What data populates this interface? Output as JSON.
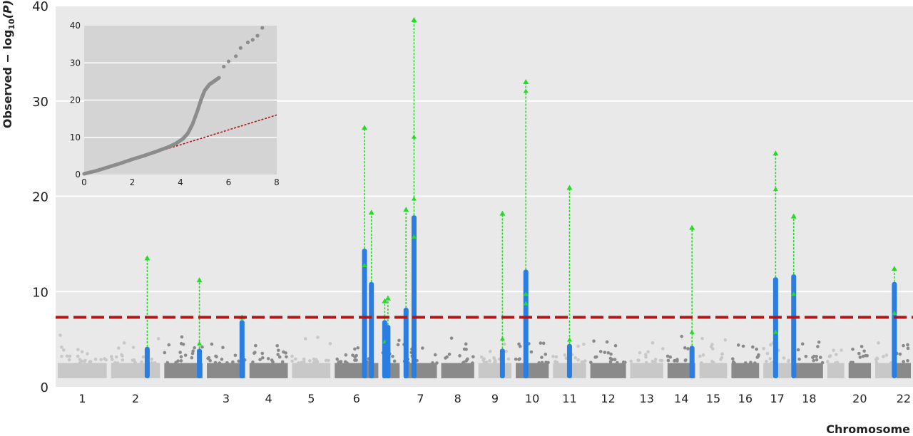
{
  "chart_data": [
    {
      "type": "scatter",
      "subtype": "manhattan",
      "xlabel": "Chromosome",
      "ylabel": "Observed − log10(P)",
      "ylabel_parts": {
        "prefix": "Observed − log",
        "sub": "10",
        "suffix": "(P)"
      },
      "ylim": [
        0,
        40
      ],
      "yticks": [
        0,
        10,
        20,
        30,
        40
      ],
      "grid": true,
      "threshold": 7.3,
      "threshold_color": "#b01818",
      "colors": {
        "background": "#e9e9e9",
        "grid": "#ffffff",
        "chrom_light": "#c8c8c8",
        "chrom_dark": "#8a8a8a",
        "hit": "#2a7de1",
        "arrow": "#22dd22"
      },
      "chromosomes": [
        {
          "label": "1",
          "shade": "light",
          "span": [
            0,
            1
          ]
        },
        {
          "label": "2",
          "shade": "light",
          "span": [
            1,
            2
          ]
        },
        {
          "label": "",
          "shade": "dark",
          "span": [
            2,
            2.8
          ]
        },
        {
          "label": "3",
          "shade": "dark",
          "span": [
            2.8,
            3.6
          ]
        },
        {
          "label": "4",
          "shade": "dark",
          "span": [
            3.6,
            4.4
          ]
        },
        {
          "label": "5",
          "shade": "light",
          "span": [
            4.4,
            5.2
          ]
        },
        {
          "label": "6",
          "shade": "dark",
          "span": [
            5.2,
            6.1
          ]
        },
        {
          "label": "",
          "shade": "dark",
          "span": [
            6.1,
            6.5
          ]
        },
        {
          "label": "7",
          "shade": "dark",
          "span": [
            6.5,
            7.2
          ]
        },
        {
          "label": "8",
          "shade": "dark",
          "span": [
            7.2,
            7.9
          ]
        },
        {
          "label": "9",
          "shade": "light",
          "span": [
            7.9,
            8.6
          ]
        },
        {
          "label": "10",
          "shade": "dark",
          "span": [
            8.6,
            9.3
          ]
        },
        {
          "label": "11",
          "shade": "light",
          "span": [
            9.3,
            10.0
          ]
        },
        {
          "label": "12",
          "shade": "dark",
          "span": [
            10.0,
            10.75
          ]
        },
        {
          "label": "13",
          "shade": "light",
          "span": [
            10.75,
            11.45
          ]
        },
        {
          "label": "14",
          "shade": "dark",
          "span": [
            11.45,
            12.05
          ]
        },
        {
          "label": "15",
          "shade": "light",
          "span": [
            12.05,
            12.65
          ]
        },
        {
          "label": "16",
          "shade": "dark",
          "span": [
            12.65,
            13.25
          ]
        },
        {
          "label": "17",
          "shade": "light",
          "span": [
            13.25,
            13.85
          ]
        },
        {
          "label": "18",
          "shade": "dark",
          "span": [
            13.85,
            14.45
          ]
        },
        {
          "label": "",
          "shade": "light",
          "span": [
            14.45,
            14.85
          ]
        },
        {
          "label": "20",
          "shade": "dark",
          "span": [
            14.85,
            15.35
          ]
        },
        {
          "label": "",
          "shade": "light",
          "span": [
            15.35,
            15.75
          ]
        },
        {
          "label": "22",
          "shade": "dark",
          "span": [
            15.75,
            16.1
          ]
        }
      ],
      "hits": [
        {
          "pos": 1.72,
          "top": 4.2,
          "arrow_to": 13.8,
          "mids": []
        },
        {
          "pos": 2.7,
          "top": 4.0,
          "arrow_to": 11.5,
          "mids": [
            4.8
          ]
        },
        {
          "pos": 3.5,
          "top": 7.0,
          "arrow_to": 7.6,
          "mids": []
        },
        {
          "pos": 5.8,
          "top": 14.5,
          "arrow_to": 27.5,
          "mids": [
            13.0
          ]
        },
        {
          "pos": 5.93,
          "top": 11.0,
          "arrow_to": 18.6,
          "mids": []
        },
        {
          "pos": 6.18,
          "top": 7.0,
          "arrow_to": 9.3,
          "mids": [
            5.0
          ]
        },
        {
          "pos": 6.24,
          "top": 6.5,
          "arrow_to": 9.6,
          "mids": []
        },
        {
          "pos": 6.58,
          "top": 8.3,
          "arrow_to": 18.9,
          "mids": []
        },
        {
          "pos": 6.73,
          "top": 18.0,
          "arrow_to": 38.8,
          "mids": [
            26.5,
            20.0,
            16.0
          ]
        },
        {
          "pos": 8.39,
          "top": 4.0,
          "arrow_to": 18.5,
          "mids": [
            5.3
          ]
        },
        {
          "pos": 8.83,
          "top": 12.3,
          "arrow_to": 32.3,
          "mids": [
            31.3,
            10.0,
            9.0
          ]
        },
        {
          "pos": 9.65,
          "top": 4.5,
          "arrow_to": 21.2,
          "mids": [
            5.2
          ]
        },
        {
          "pos": 11.95,
          "top": 4.3,
          "arrow_to": 17.0,
          "mids": [
            6.0
          ]
        },
        {
          "pos": 13.52,
          "top": 11.5,
          "arrow_to": 24.8,
          "mids": [
            21.0,
            6.0
          ]
        },
        {
          "pos": 13.86,
          "top": 11.8,
          "arrow_to": 18.2,
          "mids": [
            10.0
          ]
        },
        {
          "pos": 15.75,
          "top": 11.0,
          "arrow_to": 12.7,
          "mids": [
            8.0
          ]
        }
      ]
    },
    {
      "type": "line",
      "subtype": "qq-plot",
      "xlim": [
        0,
        8
      ],
      "ylim": [
        0,
        40
      ],
      "xticks": [
        0,
        2,
        4,
        6,
        8
      ],
      "yticks": [
        0,
        10,
        20,
        30,
        40
      ],
      "colors": {
        "background": "#d4d4d4",
        "grid": "#ffffff",
        "points": "#8c8c8c",
        "expected": "#b01818"
      },
      "expected_line": [
        [
          0,
          0
        ],
        [
          8,
          16
        ]
      ],
      "observed": [
        [
          0,
          0.2
        ],
        [
          0.5,
          1.0
        ],
        [
          1,
          2.0
        ],
        [
          1.5,
          3.0
        ],
        [
          2,
          4.1
        ],
        [
          2.5,
          5.1
        ],
        [
          3,
          6.2
        ],
        [
          3.5,
          7.4
        ],
        [
          3.8,
          8.3
        ],
        [
          4.1,
          9.6
        ],
        [
          4.3,
          11.0
        ],
        [
          4.5,
          13.5
        ],
        [
          4.7,
          17.0
        ],
        [
          4.85,
          20.0
        ],
        [
          5.0,
          22.5
        ],
        [
          5.2,
          24.2
        ],
        [
          5.4,
          25.1
        ],
        [
          5.6,
          26.0
        ],
        [
          5.8,
          29.0
        ],
        [
          6.0,
          30.4
        ],
        [
          6.3,
          31.8
        ],
        [
          6.5,
          34.0
        ],
        [
          6.8,
          35.5
        ],
        [
          7.0,
          36.2
        ],
        [
          7.2,
          37.3
        ],
        [
          7.4,
          39.4
        ]
      ]
    }
  ]
}
